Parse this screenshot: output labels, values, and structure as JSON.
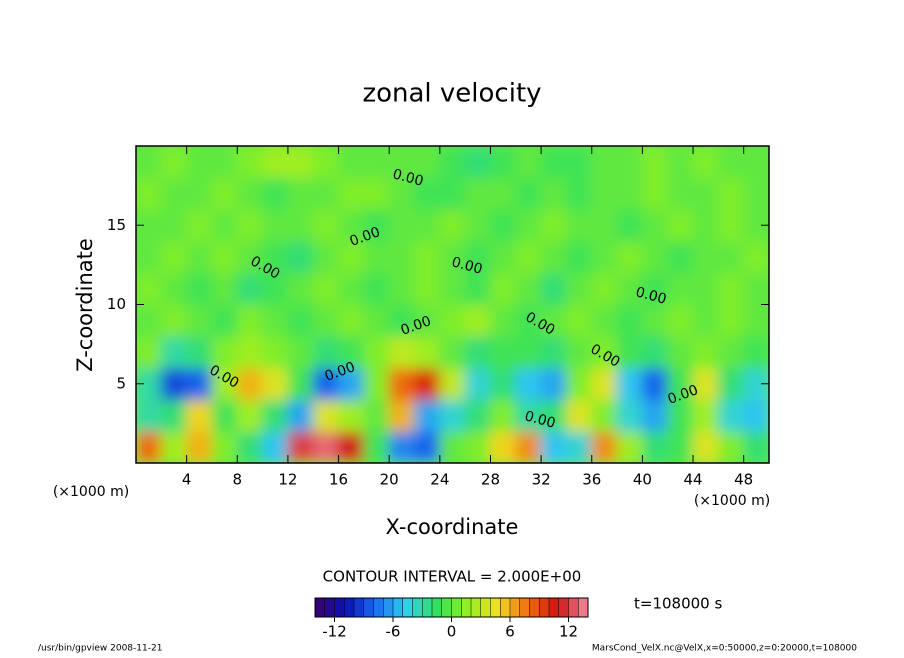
{
  "chart_data": {
    "type": "contour",
    "title": "zonal velocity",
    "xlabel": "X-coordinate",
    "ylabel": "Z-coordinate",
    "xunit": "(×1000 m)",
    "yunit": "(×1000 m)",
    "xlim": [
      0,
      50
    ],
    "ylim": [
      0,
      20
    ],
    "xticks": [
      4,
      8,
      12,
      16,
      20,
      24,
      28,
      32,
      36,
      40,
      44,
      48
    ],
    "yticks": [
      5,
      10,
      15
    ],
    "field": [
      [
        8,
        2,
        6,
        1,
        -2,
        -5,
        12,
        13,
        11,
        -1,
        -7,
        -8,
        0,
        1,
        5,
        7,
        -5,
        -4,
        7,
        2,
        -2,
        -1,
        4,
        1,
        -2
      ],
      [
        -3,
        -2,
        5,
        -1,
        2,
        -2,
        -6,
        4,
        2,
        0,
        6,
        -6,
        -4,
        -2,
        1,
        -3,
        -2,
        4,
        1,
        -4,
        -6,
        -1,
        2,
        -4,
        -5
      ],
      [
        -3,
        -9,
        -8,
        2,
        6,
        4,
        -1,
        -8,
        -6,
        1,
        8,
        10,
        3,
        -4,
        -2,
        -5,
        -6,
        1,
        4,
        -5,
        -8,
        -1,
        4,
        -2,
        -4
      ],
      [
        1,
        -3,
        -2,
        1,
        2,
        1,
        0,
        -2,
        -1,
        1,
        3,
        2,
        0,
        -2,
        -1,
        -1,
        -2,
        0,
        1,
        -1,
        -2,
        0,
        1,
        0,
        -1
      ],
      [
        0,
        1,
        0,
        -1,
        1,
        0,
        -1,
        0,
        1,
        0,
        -1,
        0,
        1,
        2,
        0,
        -1,
        0,
        1,
        0,
        -1,
        0,
        1,
        0,
        1,
        0
      ],
      [
        1,
        0,
        -1,
        0,
        -2,
        -1,
        0,
        1,
        0,
        -1,
        0,
        1,
        0,
        -1,
        1,
        0,
        -2,
        0,
        1,
        0,
        -1,
        0,
        0,
        1,
        0
      ],
      [
        0,
        1,
        0,
        1,
        0,
        -1,
        -2,
        0,
        1,
        0,
        0,
        1,
        0,
        -1,
        0,
        1,
        0,
        -1,
        0,
        1,
        0,
        -1,
        0,
        0,
        1
      ],
      [
        0,
        0,
        1,
        0,
        1,
        0,
        0,
        1,
        0,
        -1,
        0,
        0,
        1,
        0,
        -1,
        0,
        1,
        0,
        0,
        -1,
        0,
        1,
        0,
        1,
        0
      ],
      [
        1,
        0,
        0,
        1,
        0,
        -1,
        0,
        0,
        1,
        1,
        0,
        -1,
        -1,
        0,
        0,
        -1,
        0,
        -1,
        0,
        0,
        1,
        0,
        0,
        1,
        0
      ],
      [
        0,
        1,
        0,
        0,
        1,
        2,
        2,
        1,
        0,
        0,
        0,
        0,
        -1,
        -2,
        -1,
        0,
        -1,
        -1,
        0,
        0,
        1,
        0,
        1,
        0,
        0
      ]
    ],
    "contour_labels": [
      "0.00",
      "0.00",
      "0.00",
      "0.00",
      "0.00",
      "0.00",
      "0.00",
      "0.00",
      "0.00",
      "0.00",
      "0.00",
      "0.00"
    ],
    "contour_interval_text": "CONTOUR INTERVAL = 2.000E+00",
    "time_text": "t=108000 s",
    "clim": [
      -14,
      14
    ],
    "shade_interval": 1,
    "cticks": [
      -12,
      -6,
      0,
      6,
      12
    ],
    "colormap": [
      "#3a006a",
      "#0a10b8",
      "#1a6cf0",
      "#30d0f0",
      "#30e060",
      "#90f020",
      "#f0e020",
      "#f07010",
      "#d01010",
      "#f090a0"
    ],
    "footer_left": "/usr/bin/gpview   2008-11-21",
    "footer_right": "MarsCond_VelX.nc@VelX,x=0:50000,z=0:20000,t=108000"
  }
}
